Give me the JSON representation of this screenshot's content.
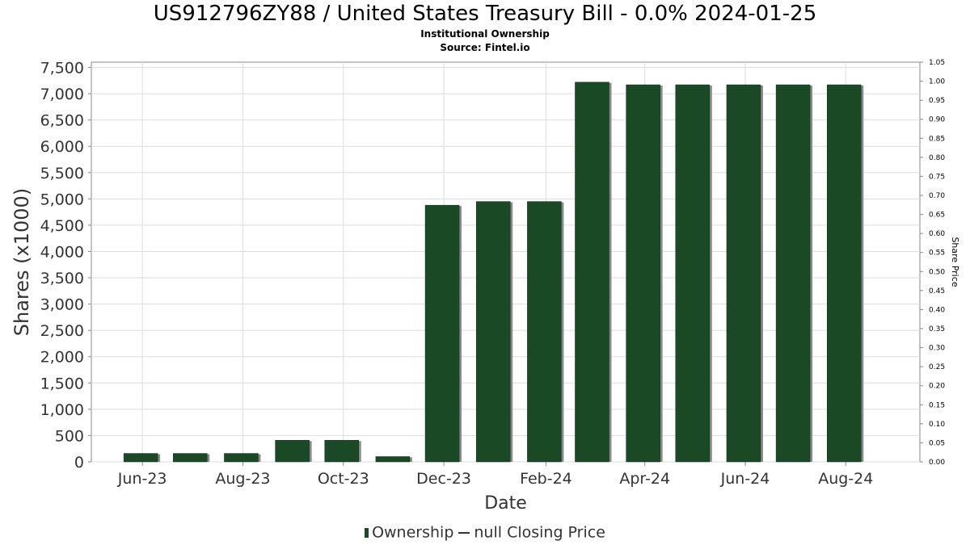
{
  "header": {
    "title": "US912796ZY88 / United States Treasury Bill - 0.0% 2024-01-25",
    "subtitle": "Institutional Ownership",
    "source": "Source: Fintel.io"
  },
  "legend": {
    "ownership_label": "Ownership",
    "price_label": "null Closing Price"
  },
  "colors": {
    "bar": "#1a4a25",
    "bar_shadow": "#8a8a8a",
    "grid": "#dddddd",
    "axis": "#888888"
  },
  "chart_data": {
    "type": "bar",
    "title": "US912796ZY88 / United States Treasury Bill - 0.0% 2024-01-25",
    "subtitle": "Institutional Ownership",
    "xlabel": "Date",
    "ylabel": "Shares (x1000)",
    "y2label": "Share Price",
    "grid": true,
    "legend_position": "bottom",
    "x_tick_labels": [
      "Jun-23",
      "Aug-23",
      "Oct-23",
      "Dec-23",
      "Feb-24",
      "Apr-24",
      "Jun-24",
      "Aug-24"
    ],
    "y_tick_labels": [
      "0",
      "500",
      "1,000",
      "1,500",
      "2,000",
      "2,500",
      "3,000",
      "3,500",
      "4,000",
      "4,500",
      "5,000",
      "5,500",
      "6,000",
      "6,500",
      "7,000",
      "7,500"
    ],
    "y2_tick_labels": [
      "0.00",
      "0.05",
      "0.10",
      "0.15",
      "0.20",
      "0.25",
      "0.30",
      "0.35",
      "0.40",
      "0.45",
      "0.50",
      "0.55",
      "0.60",
      "0.65",
      "0.70",
      "0.75",
      "0.80",
      "0.85",
      "0.90",
      "0.95",
      "1.00",
      "1.05"
    ],
    "ylim": [
      0,
      7600
    ],
    "y2lim": [
      0,
      1.05
    ],
    "series": [
      {
        "name": "Ownership",
        "x": [
          "2023-05-31",
          "2023-06-30",
          "2023-07-31",
          "2023-08-31",
          "2023-09-30",
          "2023-10-31",
          "2023-11-30",
          "2023-12-31",
          "2024-01-31",
          "2024-02-29",
          "2024-03-31",
          "2024-04-30",
          "2024-05-31",
          "2024-06-30",
          "2024-07-31"
        ],
        "values": [
          160,
          160,
          160,
          410,
          410,
          100,
          4880,
          4950,
          4950,
          7220,
          7170,
          7170,
          7170,
          7170,
          7170
        ]
      }
    ]
  }
}
